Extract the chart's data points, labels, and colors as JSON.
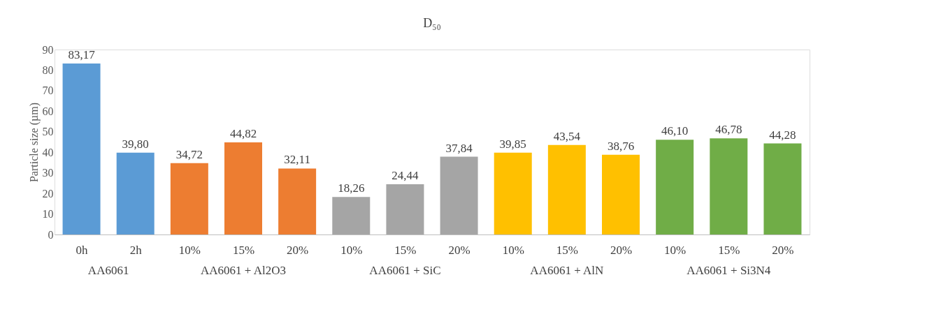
{
  "chart_data": {
    "type": "bar",
    "title": "D₅₀",
    "ylabel": "Particle size (µm)",
    "categories": [
      "0h",
      "2h",
      "10%",
      "15%",
      "20%",
      "10%",
      "15%",
      "20%",
      "10%",
      "15%",
      "20%",
      "10%",
      "15%",
      "20%"
    ],
    "values": [
      83.17,
      39.8,
      34.72,
      44.82,
      32.11,
      18.26,
      24.44,
      37.84,
      39.85,
      43.54,
      38.76,
      46.1,
      46.78,
      44.28
    ],
    "value_labels": [
      "83,17",
      "39,80",
      "34,72",
      "44,82",
      "32,11",
      "18,26",
      "24,44",
      "37,84",
      "39,85",
      "43,54",
      "38,76",
      "46,10",
      "46,78",
      "44,28"
    ],
    "colors": [
      "#5b9bd5",
      "#5b9bd5",
      "#ed7d31",
      "#ed7d31",
      "#ed7d31",
      "#a5a5a5",
      "#a5a5a5",
      "#a5a5a5",
      "#ffc000",
      "#ffc000",
      "#ffc000",
      "#70ad47",
      "#70ad47",
      "#70ad47"
    ],
    "annotations": [
      "AA6061",
      "AA6061 + Al2O3",
      "AA6061 + SiC",
      "AA6061 + AlN",
      "AA6061 + Si3N4"
    ],
    "ylim": [
      0,
      90
    ],
    "yticks": [
      0,
      10,
      20,
      30,
      40,
      50,
      60,
      70,
      80,
      90
    ],
    "grid": false
  }
}
